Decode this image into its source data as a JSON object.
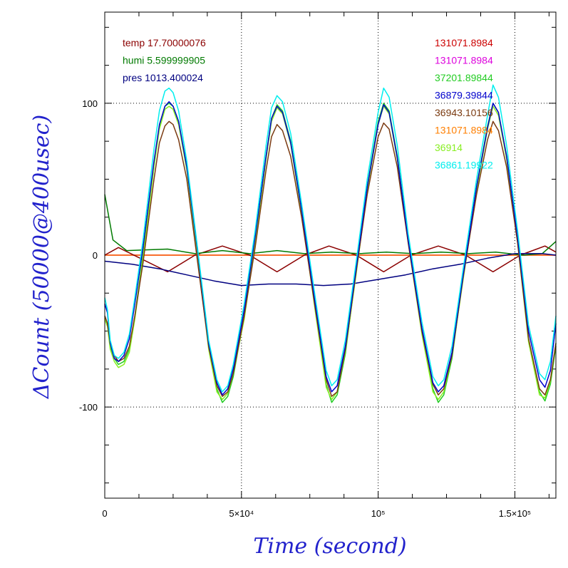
{
  "chart_data": {
    "type": "line",
    "xlabel": "Time (second)",
    "ylabel": "ΔCount (50000@400usec)",
    "xlim": [
      0,
      165000
    ],
    "ylim": [
      -160,
      160
    ],
    "grid": true,
    "x_ticks": [
      {
        "value": 0,
        "label": "0"
      },
      {
        "value": 50000,
        "label": "5×10⁴"
      },
      {
        "value": 100000,
        "label": "10⁵"
      },
      {
        "value": 150000,
        "label": "1.5×10⁵"
      }
    ],
    "y_ticks": [
      {
        "value": 100,
        "label": "100"
      },
      {
        "value": 0,
        "label": "0"
      },
      {
        "value": -100,
        "label": "-100"
      }
    ],
    "legend_left": [
      {
        "text": "temp 17.70000076",
        "color": "#8b0000"
      },
      {
        "text": "humi 5.599999905",
        "color": "#007a00"
      },
      {
        "text": "pres 1013.400024",
        "color": "#000080"
      }
    ],
    "legend_right": [
      {
        "text": "131071.8984",
        "color": "#cc0000"
      },
      {
        "text": "131071.8984",
        "color": "#dd00dd"
      },
      {
        "text": "37201.89844",
        "color": "#22cc22"
      },
      {
        "text": "36879.39844",
        "color": "#0000cc"
      },
      {
        "text": "36943.10156",
        "color": "#7a3a10"
      },
      {
        "text": "131071.8984",
        "color": "#ff7f00"
      },
      {
        "text": "36914",
        "color": "#88ee22"
      },
      {
        "text": "36861.19922",
        "color": "#00eeee"
      }
    ],
    "series": [
      {
        "color": "#cc0000",
        "x": [
          0,
          165000
        ],
        "y": [
          0,
          0
        ]
      },
      {
        "color": "#dd00dd",
        "x": [
          0,
          165000
        ],
        "y": [
          0,
          0
        ]
      },
      {
        "color": "#ff7f00",
        "x": [
          0,
          165000
        ],
        "y": [
          0,
          0
        ]
      },
      {
        "color": "#8b0000",
        "x": [
          0,
          5000,
          23000,
          33000,
          43000,
          53000,
          63000,
          73000,
          82000,
          92000,
          102000,
          112000,
          122000,
          132000,
          142000,
          152000,
          161000,
          165000
        ],
        "y": [
          0,
          5,
          -11,
          0,
          6,
          0,
          -11,
          0,
          6,
          0,
          -11,
          0,
          6,
          0,
          -11,
          0,
          6,
          2
        ]
      },
      {
        "color": "#007a00",
        "x": [
          0,
          3000,
          8000,
          23000,
          33000,
          43000,
          53000,
          63000,
          73000,
          83000,
          93000,
          103000,
          113000,
          123000,
          133000,
          143000,
          153000,
          160000,
          165000
        ],
        "y": [
          40,
          10,
          3,
          4,
          1,
          3,
          1,
          3,
          1,
          2,
          1,
          2,
          1,
          2,
          1,
          2,
          0,
          1,
          9
        ]
      },
      {
        "color": "#000080",
        "x": [
          0,
          10000,
          20000,
          30000,
          40000,
          50000,
          60000,
          70000,
          80000,
          90000,
          100000,
          110000,
          120000,
          130000,
          140000,
          150000,
          160000,
          165000
        ],
        "y": [
          -4,
          -6,
          -9,
          -13,
          -17,
          -20,
          -19,
          -19,
          -20,
          -19,
          -16,
          -13,
          -9,
          -6,
          -2,
          1,
          1,
          0
        ]
      },
      {
        "color": "#22cc22",
        "x": [
          0,
          1000,
          2000,
          3500,
          5000,
          7000,
          9000,
          11000,
          14000,
          18000,
          20000,
          22000,
          23500,
          25000,
          27000,
          30000,
          34000,
          38000,
          41000,
          43000,
          45000,
          47000,
          51000,
          55000,
          59000,
          61000,
          63000,
          65000,
          68000,
          72000,
          77000,
          81000,
          83000,
          85000,
          88000,
          92000,
          96000,
          100000,
          102000,
          104000,
          107000,
          111000,
          116000,
          120000,
          122000,
          124000,
          127000,
          131000,
          136000,
          140000,
          142000,
          144000,
          147000,
          151000,
          155000,
          159000,
          161000,
          163000,
          165000
        ],
        "y": [
          -40,
          -45,
          -60,
          -68,
          -72,
          -70,
          -62,
          -40,
          0,
          60,
          85,
          98,
          100,
          98,
          88,
          58,
          0,
          -60,
          -88,
          -97,
          -93,
          -80,
          -40,
          10,
          65,
          90,
          99,
          95,
          75,
          30,
          -35,
          -85,
          -97,
          -92,
          -65,
          -10,
          45,
          88,
          100,
          95,
          65,
          10,
          -50,
          -88,
          -97,
          -92,
          -68,
          -15,
          45,
          85,
          100,
          94,
          65,
          10,
          -55,
          -90,
          -96,
          -85,
          -60
        ]
      },
      {
        "color": "#88ee22",
        "x": [
          0,
          1000,
          2000,
          3500,
          5000,
          7000,
          9000,
          11000,
          14000,
          18000,
          20000,
          22000,
          23500,
          25000,
          27000,
          30000,
          34000,
          38000,
          41000,
          43000,
          45000,
          47000,
          51000,
          55000,
          59000,
          61000,
          63000,
          65000,
          68000,
          72000,
          77000,
          81000,
          83000,
          85000,
          88000,
          92000,
          96000,
          100000,
          102000,
          104000,
          107000,
          111000,
          116000,
          120000,
          122000,
          124000,
          127000,
          131000,
          136000,
          140000,
          142000,
          144000,
          147000,
          151000,
          155000,
          159000,
          161000,
          163000,
          165000
        ],
        "y": [
          -42,
          -47,
          -62,
          -70,
          -74,
          -72,
          -64,
          -42,
          -2,
          58,
          83,
          96,
          98,
          96,
          86,
          56,
          -2,
          -62,
          -90,
          -95,
          -91,
          -78,
          -42,
          8,
          63,
          88,
          97,
          93,
          73,
          28,
          -37,
          -87,
          -95,
          -90,
          -63,
          -12,
          43,
          86,
          98,
          93,
          63,
          8,
          -52,
          -90,
          -95,
          -90,
          -66,
          -17,
          43,
          83,
          98,
          92,
          63,
          8,
          -57,
          -92,
          -94,
          -83,
          -58
        ]
      },
      {
        "color": "#7a3a10",
        "x": [
          0,
          1000,
          2000,
          3500,
          5000,
          7000,
          9000,
          11000,
          14000,
          18000,
          20000,
          22000,
          23500,
          25000,
          27000,
          30000,
          34000,
          38000,
          41000,
          43000,
          45000,
          47000,
          51000,
          55000,
          59000,
          61000,
          63000,
          65000,
          68000,
          72000,
          77000,
          81000,
          83000,
          85000,
          88000,
          92000,
          96000,
          100000,
          102000,
          104000,
          107000,
          111000,
          116000,
          120000,
          122000,
          124000,
          127000,
          131000,
          136000,
          140000,
          142000,
          144000,
          147000,
          151000,
          155000,
          159000,
          161000,
          163000,
          165000
        ],
        "y": [
          -40,
          -45,
          -58,
          -66,
          -70,
          -68,
          -60,
          -40,
          -5,
          50,
          74,
          85,
          88,
          86,
          76,
          50,
          -5,
          -60,
          -86,
          -93,
          -90,
          -78,
          -40,
          5,
          56,
          78,
          86,
          82,
          65,
          25,
          -35,
          -82,
          -93,
          -90,
          -62,
          -10,
          40,
          78,
          87,
          83,
          58,
          8,
          -50,
          -85,
          -92,
          -88,
          -66,
          -15,
          40,
          76,
          88,
          82,
          58,
          8,
          -55,
          -88,
          -92,
          -82,
          -58
        ]
      },
      {
        "color": "#0000cc",
        "x": [
          0,
          1000,
          2000,
          3500,
          5000,
          7000,
          9000,
          11000,
          14000,
          18000,
          20000,
          22000,
          23500,
          25000,
          27000,
          30000,
          34000,
          38000,
          41000,
          43000,
          45000,
          47000,
          51000,
          55000,
          59000,
          61000,
          63000,
          65000,
          68000,
          72000,
          77000,
          81000,
          83000,
          85000,
          88000,
          92000,
          96000,
          100000,
          102000,
          104000,
          107000,
          111000,
          116000,
          120000,
          122000,
          124000,
          127000,
          131000,
          136000,
          140000,
          142000,
          144000,
          147000,
          151000,
          155000,
          159000,
          161000,
          163000,
          165000
        ],
        "y": [
          -32,
          -38,
          -58,
          -68,
          -70,
          -66,
          -55,
          -32,
          5,
          62,
          86,
          98,
          101,
          98,
          88,
          58,
          2,
          -58,
          -84,
          -92,
          -88,
          -75,
          -36,
          12,
          65,
          90,
          98,
          94,
          74,
          30,
          -32,
          -80,
          -90,
          -86,
          -60,
          -8,
          45,
          86,
          99,
          94,
          64,
          10,
          -48,
          -84,
          -90,
          -86,
          -64,
          -14,
          45,
          84,
          100,
          94,
          65,
          12,
          -50,
          -82,
          -87,
          -76,
          -45
        ]
      },
      {
        "color": "#00eeee",
        "x": [
          0,
          1000,
          2000,
          3500,
          5000,
          7000,
          9000,
          11000,
          14000,
          18000,
          20000,
          22000,
          23500,
          25000,
          27000,
          30000,
          34000,
          38000,
          41000,
          43000,
          45000,
          47000,
          51000,
          55000,
          59000,
          61000,
          63000,
          65000,
          68000,
          72000,
          77000,
          81000,
          83000,
          85000,
          88000,
          92000,
          96000,
          100000,
          102000,
          104000,
          107000,
          111000,
          116000,
          120000,
          122000,
          124000,
          127000,
          131000,
          136000,
          140000,
          142000,
          144000,
          147000,
          151000,
          155000,
          159000,
          161000,
          163000,
          165000
        ],
        "y": [
          -28,
          -36,
          -56,
          -66,
          -68,
          -64,
          -52,
          -28,
          10,
          70,
          95,
          108,
          110,
          107,
          95,
          62,
          4,
          -56,
          -82,
          -90,
          -86,
          -72,
          -32,
          16,
          72,
          97,
          105,
          101,
          80,
          34,
          -28,
          -76,
          -86,
          -82,
          -56,
          -4,
          50,
          94,
          110,
          104,
          72,
          14,
          -44,
          -80,
          -86,
          -82,
          -60,
          -10,
          50,
          92,
          112,
          104,
          72,
          16,
          -46,
          -78,
          -82,
          -70,
          -40
        ]
      }
    ]
  }
}
